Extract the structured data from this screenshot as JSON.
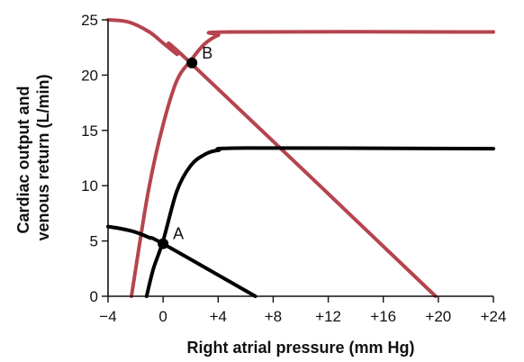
{
  "chart_data": {
    "type": "line",
    "title": "",
    "xlabel": "Right atrial pressure (mm Hg)",
    "ylabel_lines": [
      "Cardiac output and",
      "venous return (L/min)"
    ],
    "xlim": [
      -4,
      24
    ],
    "ylim": [
      0,
      25
    ],
    "x_ticks": [
      -4,
      0,
      4,
      8,
      12,
      16,
      20,
      24
    ],
    "x_tick_labels": [
      "−4",
      "0",
      "+4",
      "+8",
      "+12",
      "+16",
      "+20",
      "+24"
    ],
    "y_ticks": [
      0,
      5,
      10,
      15,
      20,
      25
    ],
    "y_tick_labels": [
      "0",
      "5",
      "10",
      "15",
      "20",
      "25"
    ],
    "grid": false,
    "colors": {
      "red": "#b5444e",
      "black": "#000000"
    },
    "series": [
      {
        "color": "red",
        "points": [
          [
            -2.3,
            0
          ],
          [
            -1.8,
            4
          ],
          [
            -1.0,
            10
          ],
          [
            0,
            15.5
          ],
          [
            1.0,
            19.5
          ],
          [
            2.0,
            21.3
          ],
          [
            3.0,
            22.8
          ],
          [
            4.0,
            23.6
          ],
          [
            5.0,
            23.9
          ],
          [
            24,
            23.9
          ]
        ]
      },
      {
        "color": "red",
        "points": [
          [
            -4,
            25
          ],
          [
            -2.5,
            24.8
          ],
          [
            -1.0,
            23.9
          ],
          [
            0,
            22.9
          ],
          [
            1.0,
            21.9
          ],
          [
            2.0,
            21.1
          ],
          [
            19.8,
            0
          ]
        ]
      },
      {
        "color": "black",
        "points": [
          [
            -1.2,
            0
          ],
          [
            -0.7,
            2.5
          ],
          [
            0,
            5.0
          ],
          [
            1.0,
            9.5
          ],
          [
            2.0,
            11.8
          ],
          [
            3.0,
            12.8
          ],
          [
            4.0,
            13.2
          ],
          [
            6.0,
            13.4
          ],
          [
            24,
            13.35
          ]
        ]
      },
      {
        "color": "black",
        "points": [
          [
            -4,
            6.3
          ],
          [
            -3.0,
            6.1
          ],
          [
            -2.0,
            5.8
          ],
          [
            -1.0,
            5.3
          ],
          [
            0,
            4.75
          ],
          [
            6.7,
            0
          ]
        ]
      }
    ],
    "annotations": [
      {
        "label": "A",
        "x": 0,
        "y": 4.75
      },
      {
        "label": "B",
        "x": 2.1,
        "y": 21.1
      }
    ]
  }
}
